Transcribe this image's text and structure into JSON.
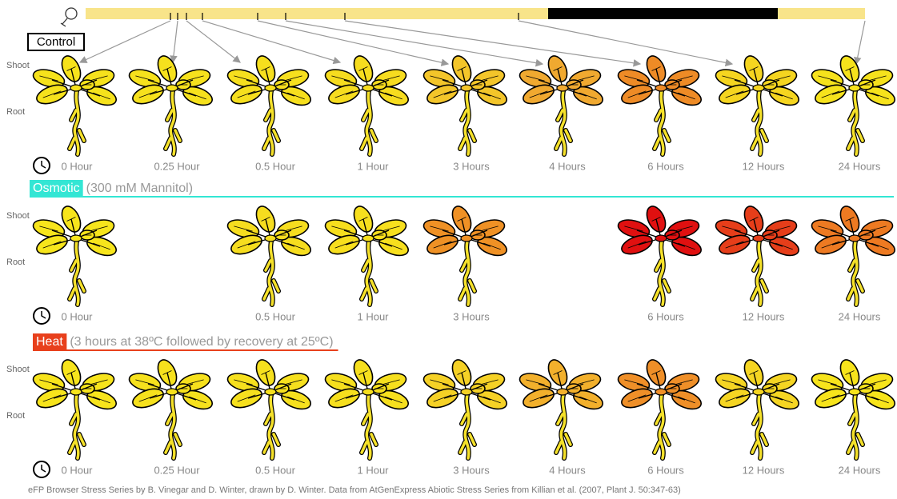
{
  "sections": [
    {
      "label": "Control",
      "shoot_label": "Shoot",
      "root_label": "Root",
      "plants": [
        {
          "time": "0 Hour",
          "color": "#f6e21c"
        },
        {
          "time": "0.25 Hour",
          "color": "#f6e11d"
        },
        {
          "time": "0.5 Hour",
          "color": "#f6df1e"
        },
        {
          "time": "1 Hour",
          "color": "#f6dc1f"
        },
        {
          "time": "3 Hours",
          "color": "#f3c52a"
        },
        {
          "time": "4 Hours",
          "color": "#f0a930"
        },
        {
          "time": "6 Hours",
          "color": "#ee8b26"
        },
        {
          "time": "12 Hours",
          "color": "#f5d520"
        },
        {
          "time": "24 Hours",
          "color": "#f6e21c"
        }
      ]
    },
    {
      "label": "Osmotic",
      "note": "(300 mM Mannitol)",
      "color": "#33e6d4",
      "shoot_label": "Shoot",
      "root_label": "Root",
      "plants": [
        {
          "time": "0 Hour",
          "color": "#f7e51c"
        },
        null,
        {
          "time": "0.5 Hour",
          "color": "#f6dd1f"
        },
        {
          "time": "1 Hour",
          "color": "#f7df1e"
        },
        {
          "time": "3 Hours",
          "color": "#ef9125"
        },
        null,
        {
          "time": "6 Hours",
          "color": "#e01010"
        },
        {
          "time": "12 Hours",
          "color": "#e63e1a"
        },
        {
          "time": "24 Hours",
          "color": "#ed7a22"
        }
      ]
    },
    {
      "label": "Heat",
      "note": "(3 hours at 38ºC followed by recovery at 25ºC)",
      "color": "#e8401c",
      "shoot_label": "Shoot",
      "root_label": "Root",
      "plants": [
        {
          "time": "0 Hour",
          "color": "#f7e41c"
        },
        {
          "time": "0.25 Hour",
          "color": "#f6e11d"
        },
        {
          "time": "0.5 Hour",
          "color": "#f6e01e"
        },
        {
          "time": "1 Hour",
          "color": "#f6df1e"
        },
        {
          "time": "3 Hours",
          "color": "#f5d126"
        },
        {
          "time": "4 Hours",
          "color": "#f2b02c"
        },
        {
          "time": "6 Hours",
          "color": "#ef8f28"
        },
        {
          "time": "12 Hours",
          "color": "#f5d523"
        },
        {
          "time": "24 Hours",
          "color": "#f7e41c"
        }
      ]
    }
  ],
  "footer": "eFP Browser Stress Series by B. Vinegar and D. Winter,  drawn by D. Winter.  Data from AtGenExpress Abiotic Stress Series from Killian et al.  (2007, Plant J. 50:347-63)"
}
